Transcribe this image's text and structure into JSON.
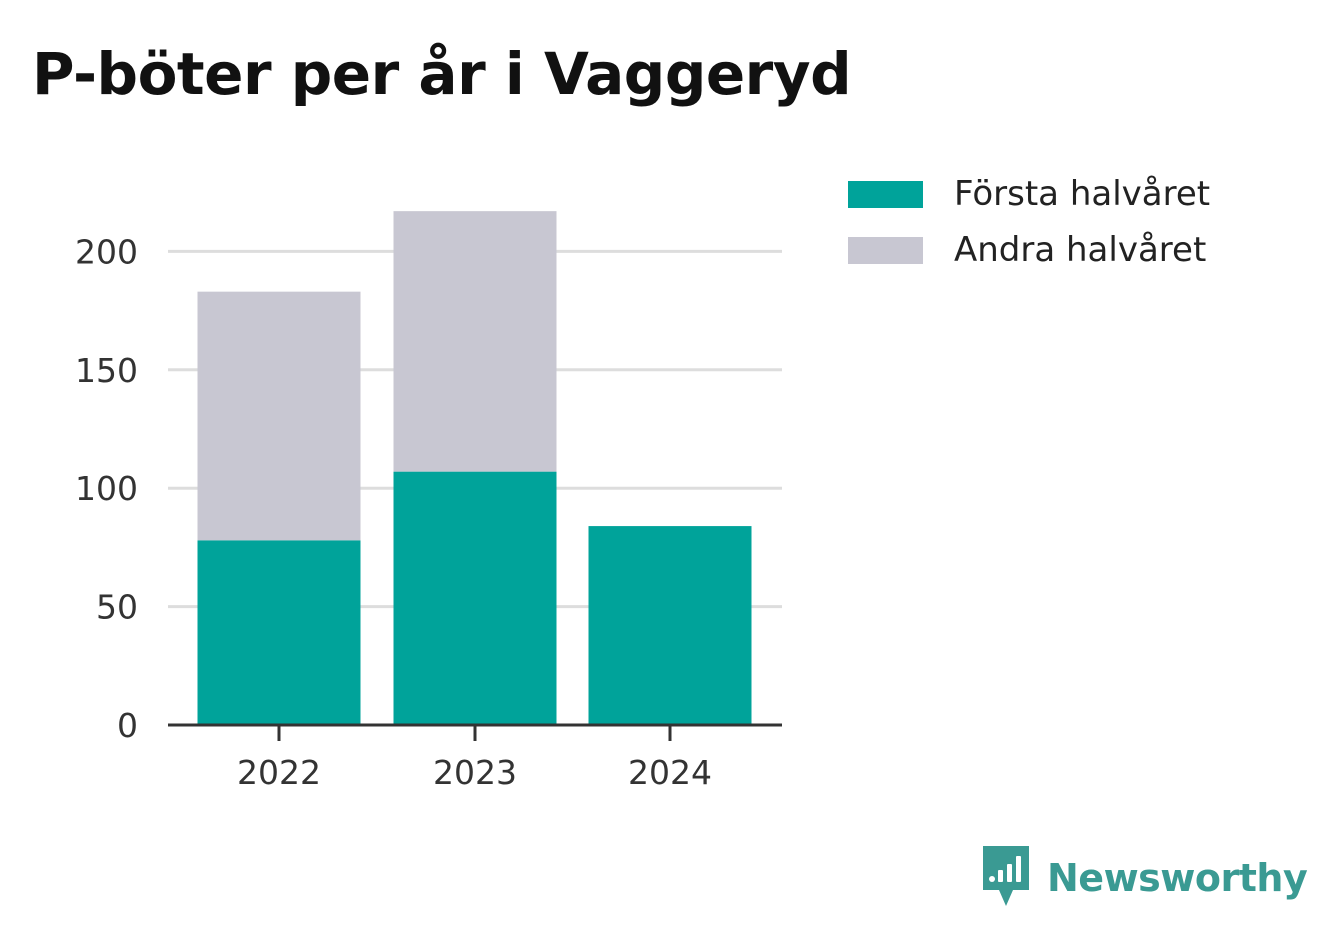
{
  "title": "P-böter per år i Vaggeryd",
  "colors": {
    "first_half": "#00a39a",
    "second_half": "#c8c7d2",
    "grid": "#dddddd",
    "axis": "#333333",
    "brand": "#3a9a93"
  },
  "legend": {
    "items": [
      {
        "label": "Första halvåret",
        "color": "#00a39a"
      },
      {
        "label": "Andra halvåret",
        "color": "#c8c7d2"
      }
    ],
    "placement": "right"
  },
  "brand": {
    "name": "Newsworthy",
    "icon": "newsworthy-logo-icon"
  },
  "chart_data": {
    "type": "bar",
    "stacked": true,
    "categories": [
      "2022",
      "2023",
      "2024"
    ],
    "series": [
      {
        "name": "Första halvåret",
        "values": [
          78,
          107,
          84
        ]
      },
      {
        "name": "Andra halvåret",
        "values": [
          105,
          110,
          0
        ]
      }
    ],
    "title": "P-böter per år i Vaggeryd",
    "xlabel": "",
    "ylabel": "",
    "ylim": [
      0,
      220
    ],
    "yticks": [
      0,
      50,
      100,
      150,
      200
    ],
    "grid": true,
    "legend_position": "right"
  }
}
